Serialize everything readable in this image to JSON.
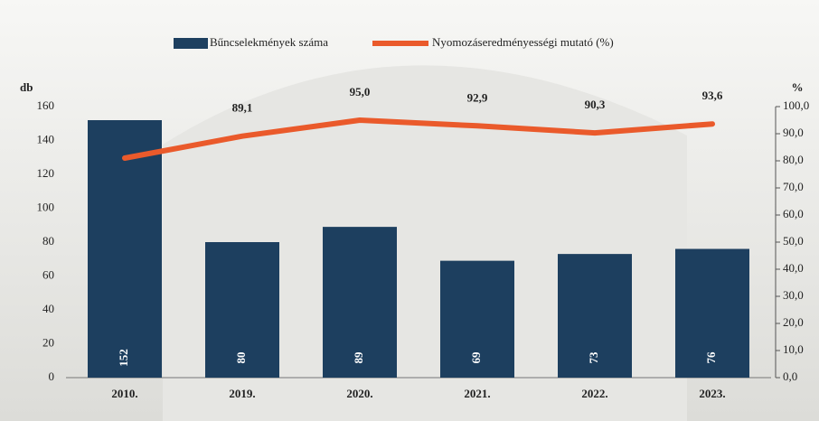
{
  "chart_data": {
    "type": "bar-line",
    "categories": [
      "2010.",
      "2019.",
      "2020.",
      "2021.",
      "2022.",
      "2023."
    ],
    "series": [
      {
        "name": "Bűncselekmények száma",
        "color": "#1d3f5f",
        "values": [
          152,
          80,
          89,
          69,
          73,
          76
        ],
        "type": "bar"
      },
      {
        "name": "Nyomozáseredményességi mutató (%)",
        "color": "#ea5a2b",
        "values": [
          81,
          89.1,
          95.0,
          92.9,
          90.3,
          93.6
        ],
        "value_labels": [
          null,
          "89,1",
          "95,0",
          "92,9",
          "90,3",
          "93,6"
        ],
        "type": "line",
        "axis": "y2"
      }
    ],
    "ylabel": "db",
    "y2label": "%",
    "ylim": [
      0,
      160
    ],
    "yticks": [
      0,
      20,
      40,
      60,
      80,
      100,
      120,
      140,
      160
    ],
    "y2lim": [
      0,
      100
    ],
    "y2ticks": [
      {
        "value": 0,
        "label": "0,0"
      },
      {
        "value": 10,
        "label": "10,0"
      },
      {
        "value": 20,
        "label": "20,0"
      },
      {
        "value": 30,
        "label": "30,0"
      },
      {
        "value": 40,
        "label": "40,0"
      },
      {
        "value": 50,
        "label": "50,0"
      },
      {
        "value": 60,
        "label": "60,0"
      },
      {
        "value": 70,
        "label": "70,0"
      },
      {
        "value": 80,
        "label": "80,0"
      },
      {
        "value": 90,
        "label": "90,0"
      },
      {
        "value": 100,
        "label": "100,0"
      }
    ],
    "legend": "top"
  }
}
